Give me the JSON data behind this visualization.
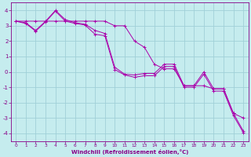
{
  "xlabel": "Windchill (Refroidissement éolien,°C)",
  "background_color": "#c5ecee",
  "grid_color": "#a0d0d8",
  "line_color": "#aa00aa",
  "xlim": [
    -0.5,
    23.5
  ],
  "ylim": [
    -4.5,
    4.5
  ],
  "yticks": [
    -4,
    -3,
    -2,
    -1,
    0,
    1,
    2,
    3,
    4
  ],
  "xticks": [
    0,
    1,
    2,
    3,
    4,
    5,
    6,
    7,
    8,
    9,
    10,
    11,
    12,
    13,
    14,
    15,
    16,
    17,
    18,
    19,
    20,
    21,
    22,
    23
  ],
  "series": [
    {
      "x": [
        0,
        1,
        2,
        3,
        4,
        5,
        6,
        7,
        8,
        9,
        10,
        11,
        12,
        13,
        14,
        15,
        16,
        17,
        18,
        19,
        20,
        21,
        22,
        23
      ],
      "y": [
        3.3,
        3.3,
        3.3,
        3.3,
        3.3,
        3.3,
        3.3,
        3.3,
        3.3,
        3.3,
        3.0,
        3.0,
        2.0,
        1.6,
        0.5,
        0.2,
        0.2,
        -0.9,
        -0.9,
        -0.9,
        -1.1,
        -1.1,
        -2.7,
        -3.0
      ]
    },
    {
      "x": [
        0,
        1,
        2,
        3,
        4,
        5,
        6,
        7,
        8,
        9,
        10,
        11,
        12,
        13,
        14,
        15,
        16,
        17,
        18,
        19,
        20,
        21,
        22,
        23
      ],
      "y": [
        3.3,
        3.2,
        2.7,
        3.3,
        4.0,
        3.4,
        3.2,
        3.1,
        2.7,
        2.5,
        0.3,
        -0.15,
        -0.2,
        -0.1,
        -0.1,
        0.5,
        0.5,
        -0.9,
        -0.9,
        0.0,
        -1.1,
        -1.1,
        -2.7,
        -3.85
      ]
    },
    {
      "x": [
        0,
        1,
        2,
        3,
        4,
        5,
        6,
        7,
        8,
        9,
        10,
        11,
        12,
        13,
        14,
        15,
        16,
        17,
        18,
        19,
        20,
        21,
        22,
        23
      ],
      "y": [
        3.3,
        3.15,
        2.65,
        3.25,
        3.95,
        3.3,
        3.15,
        3.05,
        2.45,
        2.35,
        0.15,
        -0.2,
        -0.35,
        -0.25,
        -0.25,
        0.35,
        0.35,
        -1.0,
        -1.0,
        -0.15,
        -1.25,
        -1.25,
        -2.85,
        -3.95
      ]
    }
  ]
}
